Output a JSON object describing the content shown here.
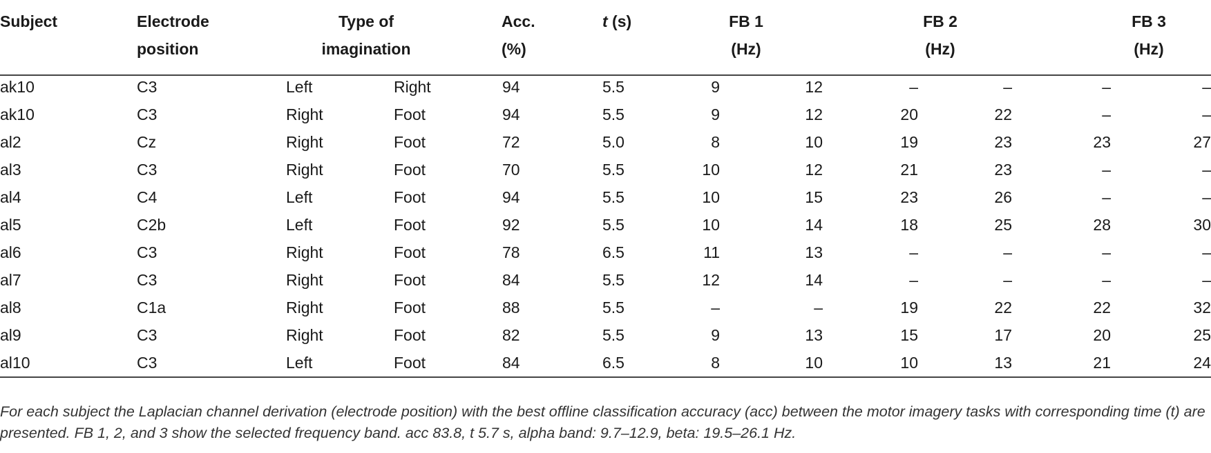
{
  "table": {
    "headers": {
      "subject": "Subject",
      "electrode": [
        "Electrode",
        "position"
      ],
      "imagination": [
        "Type of",
        "imagination"
      ],
      "acc": [
        "Acc.",
        "(%)"
      ],
      "t_var": "t",
      "t_unit": " (s)",
      "fb1": [
        "FB 1",
        "(Hz)"
      ],
      "fb2": [
        "FB 2",
        "(Hz)"
      ],
      "fb3": [
        "FB 3",
        "(Hz)"
      ]
    },
    "rows": [
      {
        "subject": "ak10",
        "electrode": "C3",
        "type1": "Left",
        "type2": "Right",
        "acc": "94",
        "t": "5.5",
        "fb1_lo": "9",
        "fb1_hi": "12",
        "fb2_lo": "–",
        "fb2_hi": "–",
        "fb3_lo": "–",
        "fb3_hi": "–"
      },
      {
        "subject": "ak10",
        "electrode": "C3",
        "type1": "Right",
        "type2": "Foot",
        "acc": "94",
        "t": "5.5",
        "fb1_lo": "9",
        "fb1_hi": "12",
        "fb2_lo": "20",
        "fb2_hi": "22",
        "fb3_lo": "–",
        "fb3_hi": "–"
      },
      {
        "subject": "al2",
        "electrode": "Cz",
        "type1": "Right",
        "type2": "Foot",
        "acc": "72",
        "t": "5.0",
        "fb1_lo": "8",
        "fb1_hi": "10",
        "fb2_lo": "19",
        "fb2_hi": "23",
        "fb3_lo": "23",
        "fb3_hi": "27"
      },
      {
        "subject": "al3",
        "electrode": "C3",
        "type1": "Right",
        "type2": "Foot",
        "acc": "70",
        "t": "5.5",
        "fb1_lo": "10",
        "fb1_hi": "12",
        "fb2_lo": "21",
        "fb2_hi": "23",
        "fb3_lo": "–",
        "fb3_hi": "–"
      },
      {
        "subject": "al4",
        "electrode": "C4",
        "type1": "Left",
        "type2": "Foot",
        "acc": "94",
        "t": "5.5",
        "fb1_lo": "10",
        "fb1_hi": "15",
        "fb2_lo": "23",
        "fb2_hi": "26",
        "fb3_lo": "–",
        "fb3_hi": "–"
      },
      {
        "subject": "al5",
        "electrode": "C2b",
        "type1": "Left",
        "type2": "Foot",
        "acc": "92",
        "t": "5.5",
        "fb1_lo": "10",
        "fb1_hi": "14",
        "fb2_lo": "18",
        "fb2_hi": "25",
        "fb3_lo": "28",
        "fb3_hi": "30"
      },
      {
        "subject": "al6",
        "electrode": "C3",
        "type1": "Right",
        "type2": "Foot",
        "acc": "78",
        "t": "6.5",
        "fb1_lo": "11",
        "fb1_hi": "13",
        "fb2_lo": "–",
        "fb2_hi": "–",
        "fb3_lo": "–",
        "fb3_hi": "–"
      },
      {
        "subject": "al7",
        "electrode": "C3",
        "type1": "Right",
        "type2": "Foot",
        "acc": "84",
        "t": "5.5",
        "fb1_lo": "12",
        "fb1_hi": "14",
        "fb2_lo": "–",
        "fb2_hi": "–",
        "fb3_lo": "–",
        "fb3_hi": "–"
      },
      {
        "subject": "al8",
        "electrode": "C1a",
        "type1": "Right",
        "type2": "Foot",
        "acc": "88",
        "t": "5.5",
        "fb1_lo": "–",
        "fb1_hi": "–",
        "fb2_lo": "19",
        "fb2_hi": "22",
        "fb3_lo": "22",
        "fb3_hi": "32"
      },
      {
        "subject": "al9",
        "electrode": "C3",
        "type1": "Right",
        "type2": "Foot",
        "acc": "82",
        "t": "5.5",
        "fb1_lo": "9",
        "fb1_hi": "13",
        "fb2_lo": "15",
        "fb2_hi": "17",
        "fb3_lo": "20",
        "fb3_hi": "25"
      },
      {
        "subject": "al10",
        "electrode": "C3",
        "type1": "Left",
        "type2": "Foot",
        "acc": "84",
        "t": "6.5",
        "fb1_lo": "8",
        "fb1_hi": "10",
        "fb2_lo": "10",
        "fb2_hi": "13",
        "fb3_lo": "21",
        "fb3_hi": "24"
      }
    ]
  },
  "caption": "For each subject the Laplacian channel derivation (electrode position) with the best offline classification accuracy (acc) between the motor imagery tasks with corresponding time (t) are presented. FB 1, 2, and 3 show the selected frequency band. acc 83.8, t 5.7 s, alpha band: 9.7–12.9, beta: 19.5–26.1 Hz."
}
